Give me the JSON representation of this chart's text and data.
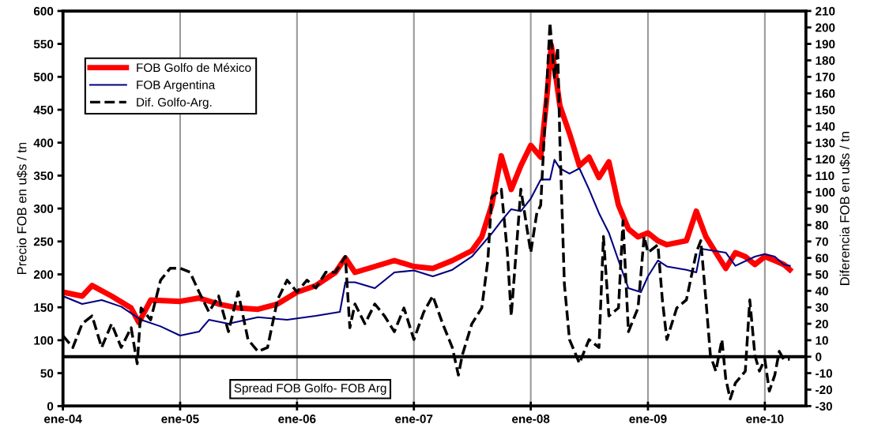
{
  "chart_data": {
    "type": "line",
    "ylabel": "Precio FOB en u$s / tn",
    "y2label": "Diferencia FOB en u$s / tn",
    "xlim": [
      "2004-01-01",
      "2010-05-09"
    ],
    "xticks": [
      {
        "value": "2004-01-01",
        "label": "ene-04"
      },
      {
        "value": "2005-01-01",
        "label": "ene-05"
      },
      {
        "value": "2006-01-01",
        "label": "ene-06"
      },
      {
        "value": "2007-01-01",
        "label": "ene-07"
      },
      {
        "value": "2008-01-01",
        "label": "ene-08"
      },
      {
        "value": "2009-01-01",
        "label": "ene-09"
      },
      {
        "value": "2010-01-01",
        "label": "ene-10"
      }
    ],
    "ylim": [
      0,
      600
    ],
    "yticks": [
      0,
      50,
      100,
      150,
      200,
      250,
      300,
      350,
      400,
      450,
      500,
      550,
      600
    ],
    "y2lim": [
      -30,
      210
    ],
    "y2ticks": [
      -30,
      -20,
      -10,
      0,
      10,
      20,
      30,
      40,
      50,
      60,
      70,
      80,
      90,
      100,
      110,
      120,
      130,
      140,
      150,
      160,
      170,
      180,
      190,
      200,
      210
    ],
    "grid": "x",
    "legend": "top left",
    "ref_lines": [
      {
        "axis": "y2",
        "value": 0,
        "color": "#000000"
      }
    ],
    "annotations": [
      "Spread FOB Golfo- FOB Arg"
    ],
    "series": [
      {
        "name": "FOB Golfo de México",
        "color": "#ff0000",
        "line_style": "solid",
        "x": [
          "2004-01-01",
          "2004-03-01",
          "2004-04-01",
          "2004-06-01",
          "2004-08-01",
          "2004-08-25",
          "2004-10-01",
          "2005-01-01",
          "2005-03-01",
          "2005-05-01",
          "2005-07-01",
          "2005-09-01",
          "2005-11-01",
          "2006-01-01",
          "2006-03-01",
          "2006-05-01",
          "2006-06-01",
          "2006-07-01",
          "2006-09-01",
          "2006-11-01",
          "2007-01-01",
          "2007-03-01",
          "2007-05-01",
          "2007-07-01",
          "2007-08-01",
          "2007-09-01",
          "2007-10-01",
          "2007-11-01",
          "2007-12-01",
          "2008-01-01",
          "2008-02-01",
          "2008-02-20",
          "2008-03-05",
          "2008-03-20",
          "2008-04-01",
          "2008-05-01",
          "2008-06-01",
          "2008-07-01",
          "2008-08-01",
          "2008-09-01",
          "2008-10-01",
          "2008-11-01",
          "2008-12-01",
          "2009-01-01",
          "2009-02-01",
          "2009-03-01",
          "2009-05-01",
          "2009-06-01",
          "2009-07-01",
          "2009-08-01",
          "2009-09-01",
          "2009-10-01",
          "2009-11-01",
          "2009-12-01",
          "2010-01-01",
          "2010-02-01",
          "2010-03-01",
          "2010-03-20"
        ],
        "values": [
          173,
          167,
          183,
          167,
          149,
          127,
          161,
          159,
          164,
          155,
          149,
          147,
          155,
          173,
          183,
          203,
          225,
          203,
          212,
          221,
          212,
          209,
          221,
          236,
          257,
          305,
          380,
          329,
          365,
          396,
          378,
          468,
          548,
          498,
          456,
          414,
          365,
          378,
          347,
          371,
          305,
          269,
          257,
          263,
          251,
          245,
          251,
          296,
          257,
          233,
          209,
          233,
          227,
          215,
          227,
          221,
          215,
          207
        ]
      },
      {
        "name": "FOB Argentina",
        "color": "#000080",
        "line_style": "solid",
        "x": [
          "2004-01-01",
          "2004-03-01",
          "2004-05-01",
          "2004-07-01",
          "2004-09-01",
          "2004-11-01",
          "2005-01-01",
          "2005-03-01",
          "2005-04-01",
          "2005-06-01",
          "2005-09-01",
          "2005-12-01",
          "2006-03-01",
          "2006-05-15",
          "2006-06-01",
          "2006-07-01",
          "2006-09-01",
          "2006-11-01",
          "2007-01-01",
          "2007-03-01",
          "2007-05-01",
          "2007-07-01",
          "2007-09-01",
          "2007-10-01",
          "2007-11-01",
          "2007-12-01",
          "2008-01-01",
          "2008-02-01",
          "2008-03-01",
          "2008-03-15",
          "2008-04-01",
          "2008-05-01",
          "2008-06-01",
          "2008-07-01",
          "2008-08-01",
          "2008-09-01",
          "2008-10-01",
          "2008-11-01",
          "2008-12-10",
          "2009-01-01",
          "2009-02-01",
          "2009-03-01",
          "2009-05-01",
          "2009-06-01",
          "2009-06-15",
          "2009-09-01",
          "2009-10-01",
          "2009-12-01",
          "2010-01-01",
          "2010-02-01",
          "2010-03-01",
          "2010-03-20"
        ],
        "values": [
          167,
          155,
          161,
          151,
          131,
          121,
          107,
          113,
          131,
          125,
          135,
          131,
          137,
          143,
          188,
          188,
          179,
          203,
          206,
          197,
          207,
          227,
          262,
          281,
          299,
          296,
          315,
          344,
          344,
          374,
          361,
          353,
          361,
          329,
          293,
          263,
          221,
          179,
          173,
          197,
          221,
          212,
          207,
          203,
          239,
          233,
          213,
          227,
          231,
          227,
          215,
          213
        ]
      },
      {
        "name": "Dif. Golfo-Arg.",
        "color": "#000000",
        "line_style": "dashed",
        "axis": "y2",
        "x": [
          "2004-01-01",
          "2004-02-01",
          "2004-03-01",
          "2004-04-01",
          "2004-05-01",
          "2004-06-01",
          "2004-07-01",
          "2004-08-01",
          "2004-08-20",
          "2004-09-01",
          "2004-10-01",
          "2004-11-01",
          "2004-12-01",
          "2005-01-01",
          "2005-02-01",
          "2005-03-01",
          "2005-04-01",
          "2005-05-01",
          "2005-06-01",
          "2005-07-01",
          "2005-08-01",
          "2005-09-01",
          "2005-10-01",
          "2005-11-01",
          "2005-12-01",
          "2006-01-01",
          "2006-02-01",
          "2006-03-01",
          "2006-04-01",
          "2006-05-01",
          "2006-06-01",
          "2006-06-15",
          "2006-07-01",
          "2006-08-01",
          "2006-09-01",
          "2006-10-01",
          "2006-11-01",
          "2006-12-01",
          "2007-01-01",
          "2007-02-01",
          "2007-03-01",
          "2007-04-01",
          "2007-05-01",
          "2007-05-20",
          "2007-06-01",
          "2007-07-01",
          "2007-08-01",
          "2007-08-20",
          "2007-09-01",
          "2007-10-01",
          "2007-10-20",
          "2007-11-01",
          "2007-11-20",
          "2007-12-01",
          "2008-01-01",
          "2008-01-20",
          "2008-02-01",
          "2008-02-15",
          "2008-03-01",
          "2008-03-15",
          "2008-03-25",
          "2008-04-01",
          "2008-04-15",
          "2008-05-01",
          "2008-06-01",
          "2008-07-01",
          "2008-08-01",
          "2008-08-15",
          "2008-09-01",
          "2008-10-01",
          "2008-10-15",
          "2008-11-01",
          "2008-12-01",
          "2008-12-20",
          "2009-01-01",
          "2009-02-01",
          "2009-02-15",
          "2009-03-01",
          "2009-04-01",
          "2009-05-01",
          "2009-06-01",
          "2009-06-15",
          "2009-07-01",
          "2009-07-15",
          "2009-08-01",
          "2009-08-20",
          "2009-09-01",
          "2009-09-15",
          "2009-10-01",
          "2009-11-01",
          "2009-11-15",
          "2009-12-01",
          "2009-12-15",
          "2010-01-01",
          "2010-01-15",
          "2010-02-01",
          "2010-02-15",
          "2010-03-01",
          "2010-03-20"
        ],
        "values": [
          12.8,
          5.6,
          20,
          24.8,
          5.6,
          20,
          5.6,
          17.6,
          -4.3,
          29.6,
          22.4,
          46.5,
          53.7,
          53.7,
          51.3,
          39.3,
          27.2,
          36.9,
          15.2,
          39.3,
          10.4,
          3.2,
          5.6,
          34.5,
          46.5,
          39.3,
          46.5,
          41.7,
          51.3,
          51.3,
          60.9,
          17.6,
          32,
          20,
          32,
          24.8,
          15.2,
          29.6,
          10.4,
          27.2,
          36.9,
          20,
          5.6,
          -11.2,
          0.8,
          20,
          29.6,
          58.5,
          97,
          101.8,
          63.3,
          24.8,
          73,
          101.8,
          63.3,
          87.4,
          92,
          145,
          202.8,
          169,
          188,
          130.7,
          44,
          10.4,
          -4,
          10.4,
          5.6,
          73,
          24.8,
          29.6,
          82.6,
          15.2,
          29.6,
          73,
          63.3,
          68,
          34.5,
          10.4,
          29.6,
          34.5,
          63.3,
          70.5,
          34.5,
          0.8,
          -8.8,
          10.4,
          -13.6,
          -25.7,
          -16,
          -8.8,
          34.5,
          0.8,
          -8.8,
          -1.6,
          -20.9,
          -11.2,
          3.2,
          -1.6,
          -1.6
        ]
      }
    ]
  }
}
